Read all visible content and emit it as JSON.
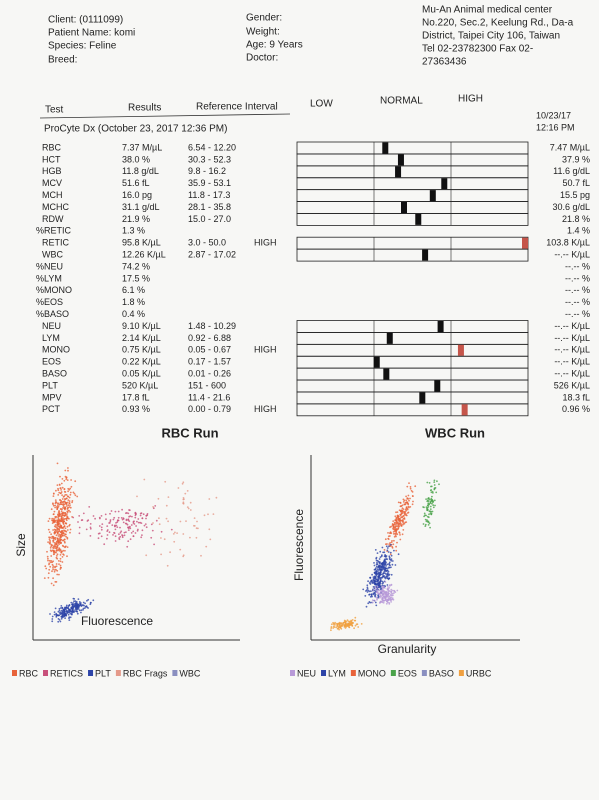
{
  "header": {
    "client": "Client: (0111099)",
    "patient": "Patient Name: komi",
    "species": "Species: Feline",
    "breed": "Breed:",
    "gender": "Gender:",
    "weight": "Weight:",
    "age": "Age: 9 Years",
    "doctor": "Doctor:",
    "clinic": [
      "Mu-An Animal medical center",
      "No.220, Sec.2, Keelung Rd., Da-a",
      "District, Taipei City 106, Taiwan",
      "Tel 02-23782300  Fax 02-",
      "27363436"
    ]
  },
  "columns": {
    "test": "Test",
    "results": "Results",
    "reference": "Reference Interval",
    "low": "LOW",
    "normal": "NORMAL",
    "high": "HIGH"
  },
  "run": "ProCyte Dx (October 23, 2017 12:36 PM)",
  "previous": {
    "date": "10/23/17",
    "time": "12:16 PM"
  },
  "table": {
    "rows": [
      [
        "RBC",
        "7.37 M/µL",
        "6.54 - 12.20",
        "",
        "7.47 M/µL"
      ],
      [
        "HCT",
        "38.0 %",
        "30.3 - 52.3",
        "",
        "37.9 %"
      ],
      [
        "HGB",
        "11.8 g/dL",
        "9.8 - 16.2",
        "",
        "11.6 g/dL"
      ],
      [
        "MCV",
        "51.6 fL",
        "35.9 - 53.1",
        "",
        "50.7 fL"
      ],
      [
        "MCH",
        "16.0 pg",
        "11.8 - 17.3",
        "",
        "15.5 pg"
      ],
      [
        "MCHC",
        "31.1 g/dL",
        "28.1 - 35.8",
        "",
        "30.6 g/dL"
      ],
      [
        "RDW",
        "21.9 %",
        "15.0 - 27.0",
        "",
        "21.8 %"
      ],
      [
        "%RETIC",
        "1.3 %",
        "",
        "",
        "1.4 %"
      ],
      [
        "RETIC",
        "95.8 K/µL",
        "3.0 - 50.0",
        "HIGH",
        "103.8 K/µL"
      ],
      [
        "WBC",
        "12.26 K/µL",
        "2.87 - 17.02",
        "",
        "--.-- K/µL"
      ],
      [
        "%NEU",
        "74.2 %",
        "",
        "",
        "--.-- %"
      ],
      [
        "%LYM",
        "17.5 %",
        "",
        "",
        "--.-- %"
      ],
      [
        "%MONO",
        "6.1 %",
        "",
        "",
        "--.-- %"
      ],
      [
        "%EOS",
        "1.8 %",
        "",
        "",
        "--.-- %"
      ],
      [
        "%BASO",
        "0.4 %",
        "",
        "",
        "--.-- %"
      ],
      [
        "NEU",
        "9.10 K/µL",
        "1.48 - 10.29",
        "",
        "--.-- K/µL"
      ],
      [
        "LYM",
        "2.14 K/µL",
        "0.92 - 6.88",
        "",
        "--.-- K/µL"
      ],
      [
        "MONO",
        "0.75 K/µL",
        "0.05 - 0.67",
        "HIGH",
        "--.-- K/µL"
      ],
      [
        "EOS",
        "0.22 K/µL",
        "0.17 - 1.57",
        "",
        "--.-- K/µL"
      ],
      [
        "BASO",
        "0.05 K/µL",
        "0.01 - 0.26",
        "",
        "--.-- K/µL"
      ],
      [
        "PLT",
        "520 K/µL",
        "151 - 600",
        "",
        "526 K/µL"
      ],
      [
        "MPV",
        "17.8 fL",
        "11.4 - 21.6",
        "",
        "18.3 fL"
      ],
      [
        "PCT",
        "0.93 %",
        "0.00 - 0.79",
        "HIGH",
        "0.96 %"
      ]
    ]
  },
  "rbc_run": {
    "title": "RBC Run",
    "y_label": "Size",
    "x_label": "Fluorescence",
    "legend": [
      {
        "name": "RBC",
        "color": "#e8633a"
      },
      {
        "name": "RETICS",
        "color": "#c8507a"
      },
      {
        "name": "PLT",
        "color": "#2d44a8"
      },
      {
        "name": "RBC Frags",
        "color": "#e59a8a"
      },
      {
        "name": "WBC",
        "color": "#8a8fc0"
      }
    ]
  },
  "wbc_run": {
    "title": "WBC Run",
    "y_label": "Fluorescence",
    "x_label": "Granularity",
    "legend": [
      {
        "name": "NEU",
        "color": "#b89ad8"
      },
      {
        "name": "LYM",
        "color": "#2d44a8"
      },
      {
        "name": "MONO",
        "color": "#e8633a"
      },
      {
        "name": "EOS",
        "color": "#4aa34a"
      },
      {
        "name": "BASO",
        "color": "#8a8fc0"
      },
      {
        "name": "URBC",
        "color": "#f0a040"
      }
    ]
  }
}
